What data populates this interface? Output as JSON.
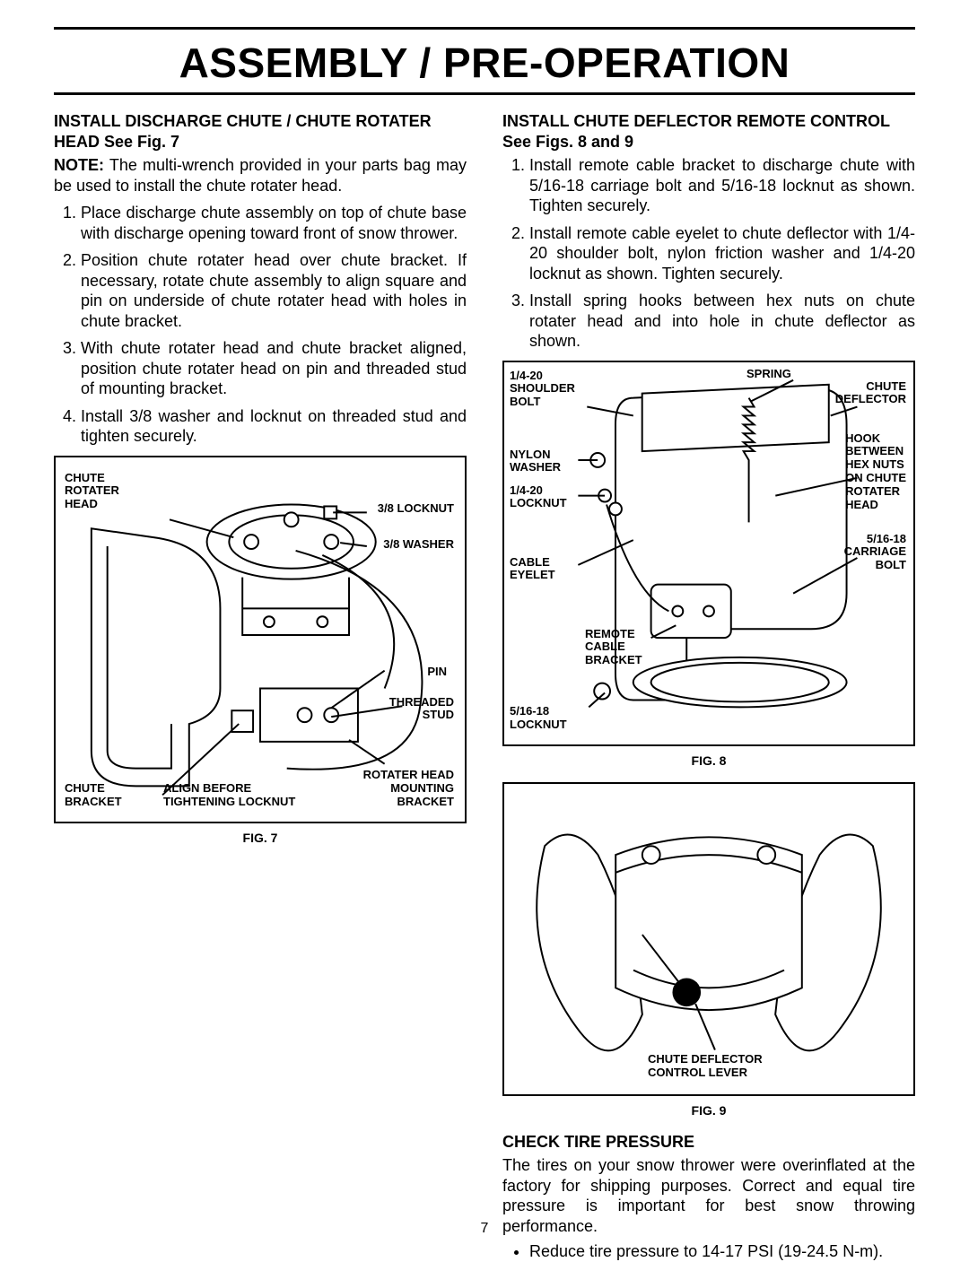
{
  "page": {
    "title": "ASSEMBLY / PRE-OPERATION",
    "number": "7",
    "text_color": "#000000",
    "bg_color": "#ffffff",
    "rule_color": "#000000",
    "body_fontsize": 18,
    "callout_fontsize": 13
  },
  "left": {
    "heading": "INSTALL DISCHARGE CHUTE / CHUTE ROTATER HEAD See Fig. 7",
    "note_label": "NOTE:",
    "note_text": "The multi-wrench provided in your parts bag may be used to install the chute rotater head.",
    "steps": [
      "Place discharge chute assembly on top of chute base with discharge opening toward front of snow thrower.",
      "Position chute rotater head over chute bracket. If necessary, rotate chute assembly to align square and pin on underside of chute rotater head with holes in chute bracket.",
      "With chute rotater head and chute bracket aligned, position chute rotater head on pin and threaded stud of mounting bracket.",
      "Install 3/8 washer and locknut on threaded stud and tighten securely."
    ],
    "fig7": {
      "caption": "FIG. 7",
      "callouts": {
        "chute_rotater_head": "CHUTE\nROTATER\nHEAD",
        "locknut_38": "3/8 LOCKNUT",
        "washer_38": "3/8 WASHER",
        "pin": "PIN",
        "threaded_stud": "THREADED\nSTUD",
        "rotater_head_mounting_bracket": "ROTATER HEAD\nMOUNTING\nBRACKET",
        "chute_bracket": "CHUTE\nBRACKET",
        "align_before": "ALIGN BEFORE\nTIGHTENING LOCKNUT"
      }
    }
  },
  "right": {
    "heading": "INSTALL CHUTE DEFLECTOR REMOTE CONTROL See Figs. 8 and 9",
    "steps": [
      "Install remote cable bracket to discharge chute with 5/16-18 carriage bolt and 5/16-18 locknut as shown. Tighten securely.",
      "Install remote cable eyelet to chute deflector with 1/4-20 shoulder bolt, nylon friction washer and 1/4-20 locknut as shown.  Tighten securely.",
      "Install spring hooks between hex nuts on chute rotater head and into hole in chute deflector as shown."
    ],
    "fig8": {
      "caption": "FIG. 8",
      "callouts": {
        "shoulder_bolt": "1/4-20\nSHOULDER\nBOLT",
        "nylon_washer": "NYLON\nWASHER",
        "locknut_14": "1/4-20\nLOCKNUT",
        "cable_eyelet": "CABLE\nEYELET",
        "remote_cable_bracket": "REMOTE\nCABLE\nBRACKET",
        "locknut_516": "5/16-18\nLOCKNUT",
        "spring": "SPRING",
        "chute_deflector": "CHUTE\nDEFLECTOR",
        "hook_between": "HOOK\nBETWEEN\nHEX NUTS\nON CHUTE\nROTATER\nHEAD",
        "carriage_bolt": "5/16-18\nCARRIAGE\nBOLT"
      }
    },
    "fig9": {
      "caption": "FIG. 9",
      "callout": "CHUTE DEFLECTOR\nCONTROL LEVER"
    },
    "tire": {
      "heading": "CHECK TIRE PRESSURE",
      "body": "The tires on your snow thrower were overinflated at the factory for shipping purposes.  Correct and equal tire pressure is important for best snow throwing performance.",
      "bullet": "Reduce tire pressure to 14-17 PSI (19-24.5 N-m)."
    }
  }
}
